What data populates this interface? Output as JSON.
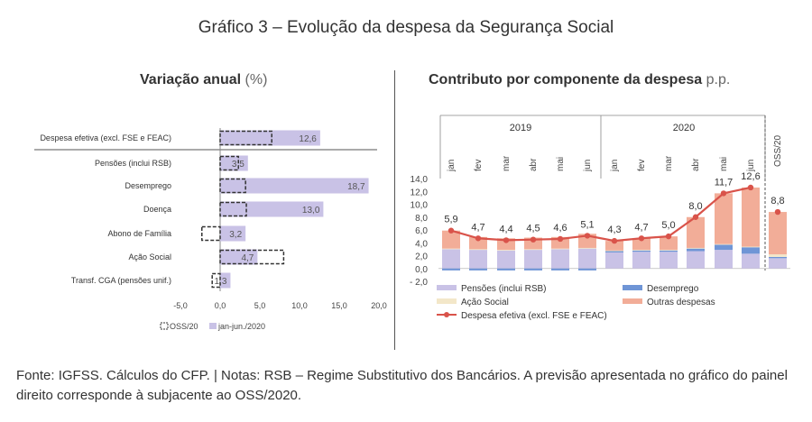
{
  "title": "Gráfico 3 – Evolução da despesa da Segurança Social",
  "left_panel": {
    "subtitle": "Variação anual",
    "unit": "(%)"
  },
  "right_panel": {
    "subtitle": "Contributo por componente da despesa",
    "unit": "p.p."
  },
  "footer": "Fonte: IGFSS. Cálculos do CFP. | Notas: RSB – Regime Substitutivo dos Bancários. A previsão apresentada no gráfico do painel direito corresponde à subjacente ao OSS/2020.",
  "chart_data": [
    {
      "type": "bar",
      "orientation": "horizontal",
      "categories": [
        "Despesa efetiva (excl. FSE e FEAC)",
        "Pensões (inclui RSB)",
        "Desemprego",
        "Doença",
        "Abono de Família",
        "Ação Social",
        "Transf. CGA (pensões unif.)"
      ],
      "series": [
        {
          "name": "jan-jun./2020",
          "values": [
            12.6,
            3.5,
            18.7,
            13.0,
            3.2,
            4.7,
            1.3
          ],
          "color": "#c9c2e6"
        },
        {
          "name": "OSS/20",
          "values": [
            6.5,
            2.3,
            3.2,
            3.3,
            -2.3,
            8.0,
            -1.0
          ],
          "style": "dashed-outline",
          "color": "#333333"
        }
      ],
      "data_labels": [
        "12,6",
        "3,5",
        "18,7",
        "13,0",
        "3,2",
        "4,7",
        "1,3"
      ],
      "xticks": [
        "-5,0",
        "0,0",
        "5,0",
        "10,0",
        "15,0",
        "20,0"
      ],
      "xlim": [
        -5,
        20
      ],
      "legend": [
        "OSS/20",
        "jan-jun./2020"
      ],
      "legend_position": "bottom-left"
    },
    {
      "type": "bar",
      "stacked": true,
      "group_labels": [
        "2019",
        "2020"
      ],
      "categories": [
        "jan",
        "fev",
        "mar",
        "abr",
        "mai",
        "jun",
        "jan",
        "fev",
        "mar",
        "abr",
        "mai",
        "jun",
        "OSS/20"
      ],
      "series": [
        {
          "name": "Pensões (inclui RSB)",
          "color": "#c9c2e6",
          "values": [
            3.0,
            2.9,
            2.8,
            2.9,
            3.0,
            3.1,
            2.5,
            2.6,
            2.6,
            2.7,
            2.9,
            2.3,
            1.6
          ]
        },
        {
          "name": "Desemprego",
          "color": "#6f95d6",
          "values": [
            -0.3,
            -0.3,
            -0.3,
            -0.3,
            -0.3,
            -0.3,
            0.2,
            0.2,
            0.2,
            0.4,
            0.8,
            1.0,
            0.2
          ]
        },
        {
          "name": "Ação Social",
          "color": "#f3e7c9",
          "values": [
            0.1,
            0.1,
            0.1,
            0.1,
            0.1,
            0.1,
            0.1,
            0.1,
            0.1,
            0.1,
            0.1,
            0.1,
            0.4
          ]
        },
        {
          "name": "Outras despesas",
          "color": "#f2ad98",
          "values": [
            2.8,
            1.9,
            1.8,
            1.8,
            1.8,
            2.2,
            1.5,
            1.8,
            2.1,
            4.8,
            7.9,
            9.2,
            6.6
          ]
        }
      ],
      "line": {
        "name": "Despesa efetiva  (excl. FSE e FEAC)",
        "color": "#d9534a",
        "values": [
          5.9,
          4.7,
          4.4,
          4.5,
          4.6,
          5.1,
          4.3,
          4.7,
          5.0,
          8.0,
          11.7,
          12.6,
          8.8
        ]
      },
      "line_labels": [
        "5,9",
        "4,7",
        "4,4",
        "4,5",
        "4,6",
        "5,1",
        "4,3",
        "4,7",
        "5,0",
        "8,0",
        "11,7",
        "12,6",
        "8,8"
      ],
      "yticks": [
        "14,0",
        "12,0",
        "10,0",
        "8,0",
        "6,0",
        "4,0",
        "2,0",
        "0,0",
        "- 2,0"
      ],
      "ylim": [
        -2,
        14
      ],
      "legend_position": "bottom"
    }
  ]
}
